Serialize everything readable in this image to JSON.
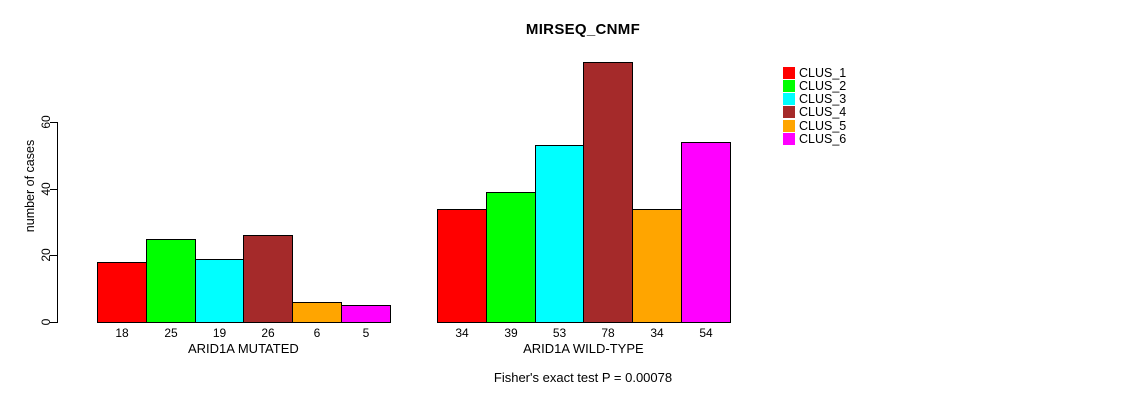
{
  "chart_data": {
    "type": "bar",
    "title": "MIRSEQ_CNMF",
    "ylabel": "number of cases",
    "xlabel": "",
    "ylim": [
      0,
      60
    ],
    "yticks": [
      0,
      20,
      40,
      60
    ],
    "grid": false,
    "legend_position": "right",
    "background_color": "#ffffff",
    "bar_border_color": "#000000",
    "clusters": [
      {
        "name": "CLUS_1",
        "color": "#ff0000"
      },
      {
        "name": "CLUS_2",
        "color": "#00ff00"
      },
      {
        "name": "CLUS_3",
        "color": "#00ffff"
      },
      {
        "name": "CLUS_4",
        "color": "#a52a2a"
      },
      {
        "name": "CLUS_5",
        "color": "#ffa500"
      },
      {
        "name": "CLUS_6",
        "color": "#ff00ff"
      }
    ],
    "groups": [
      {
        "label": "ARID1A MUTATED",
        "values": [
          18,
          25,
          19,
          26,
          6,
          5
        ]
      },
      {
        "label": "ARID1A WILD-TYPE",
        "values": [
          34,
          39,
          53,
          78,
          34,
          54
        ]
      }
    ],
    "annotation": "Fisher's exact test P = 0.00078"
  }
}
